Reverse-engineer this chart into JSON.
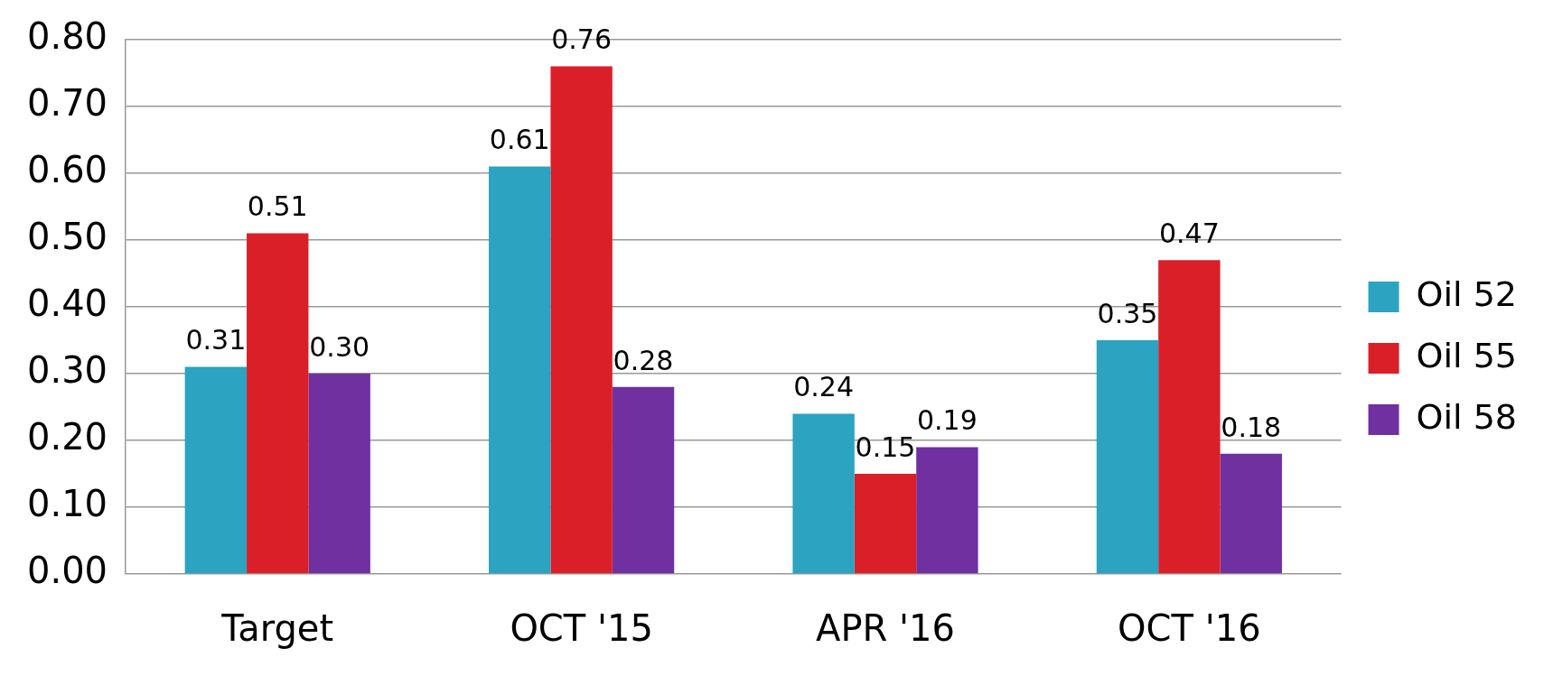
{
  "chart_data": {
    "type": "bar",
    "categories": [
      "Target",
      "OCT '15",
      "APR '16",
      "OCT '16"
    ],
    "series": [
      {
        "name": "Oil 52",
        "color": "#2ca3c0",
        "values": [
          0.31,
          0.61,
          0.24,
          0.35
        ],
        "value_labels": [
          "0.31",
          "0.61",
          "0.24",
          "0.35"
        ]
      },
      {
        "name": "Oil 55",
        "color": "#da1f28",
        "values": [
          0.51,
          0.76,
          0.15,
          0.47
        ],
        "value_labels": [
          "0.51",
          "0.76",
          "0.15",
          "0.47"
        ]
      },
      {
        "name": "Oil 58",
        "color": "#7030a0",
        "values": [
          0.3,
          0.28,
          0.19,
          0.18
        ],
        "value_labels": [
          "0.30",
          "0.28",
          "0.19",
          "0.18"
        ]
      }
    ],
    "ylim": [
      0,
      0.8
    ],
    "yticks": [
      {
        "value": 0,
        "label": "0.00"
      },
      {
        "value": 0.1,
        "label": "0.10"
      },
      {
        "value": 0.2,
        "label": "0.20"
      },
      {
        "value": 0.3,
        "label": "0.30"
      },
      {
        "value": 0.4,
        "label": "0.40"
      },
      {
        "value": 0.5,
        "label": "0.50"
      },
      {
        "value": 0.6,
        "label": "0.60"
      },
      {
        "value": 0.7,
        "label": "0.70"
      },
      {
        "value": 0.8,
        "label": "0.80"
      }
    ],
    "grid": "y",
    "legend": "right"
  }
}
